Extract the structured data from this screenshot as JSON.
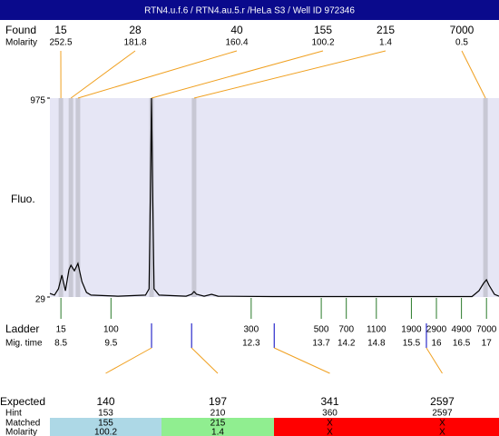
{
  "chart_data": {
    "type": "line",
    "title": "RTN4.u.f.6 / RTN4.au.5.r  /HeLa S3 / Well ID 972346",
    "ylabel": "Fluo.",
    "xlim": [
      8.28,
      17.25
    ],
    "ylim": [
      29,
      975
    ],
    "yticks": [
      29,
      975
    ],
    "color": "#000000",
    "x": [
      8.28,
      8.37,
      8.45,
      8.52,
      8.59,
      8.66,
      8.7,
      8.77,
      8.84,
      8.92,
      9.01,
      9.1,
      9.64,
      10.19,
      10.26,
      10.29,
      10.31,
      10.33,
      10.36,
      10.46,
      11.0,
      11.11,
      11.16,
      11.21,
      11.36,
      11.51,
      11.64,
      12.72,
      16.71,
      16.85,
      16.94,
      17.0,
      17.05,
      17.16,
      17.25
    ],
    "values": [
      46,
      38,
      68,
      133,
      59,
      159,
      180,
      154,
      189,
      102,
      51,
      38,
      33,
      38,
      68,
      578,
      975,
      578,
      68,
      38,
      33,
      42,
      55,
      42,
      33,
      42,
      33,
      31,
      31,
      59,
      94,
      111,
      85,
      42,
      33
    ],
    "found": {
      "label": "Found",
      "molarity_label": "Molarity",
      "sizes": [
        15,
        28,
        40,
        155,
        215,
        7000
      ],
      "molarity": [
        252.5,
        181.8,
        160.4,
        100.2,
        1.4,
        0.5
      ],
      "times": [
        8.5,
        8.7,
        8.84,
        10.31,
        11.16,
        16.98
      ]
    },
    "ladder": {
      "label": "Ladder",
      "time_label": "Mig. time",
      "sizes": [
        15,
        100,
        300,
        500,
        700,
        1100,
        1900,
        2900,
        4900,
        7000
      ],
      "times": [
        8.5,
        9.5,
        12.3,
        13.7,
        14.2,
        14.8,
        15.5,
        16,
        16.5,
        17
      ]
    },
    "expected": {
      "label": "Expected",
      "hint_label": "Hint",
      "matched_label": "Matched",
      "molarity_label": "Molarity",
      "sizes": [
        140,
        197,
        341,
        2597
      ],
      "hint": [
        153,
        210,
        360,
        2597
      ],
      "matched": [
        155,
        215,
        "X",
        "X"
      ],
      "molarity": [
        100.2,
        1.4,
        "X",
        "X"
      ],
      "times": [
        10.31,
        11.11,
        12.76,
        15.8
      ],
      "colors": [
        "#add8e6",
        "#90ee90",
        "#ff0000",
        "#ff0000"
      ]
    }
  }
}
